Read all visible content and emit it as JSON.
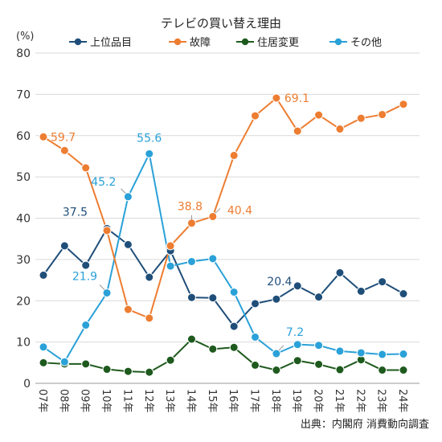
{
  "chart_data": {
    "type": "line",
    "title": "テレビの買い替え理由",
    "ylabel": "(%)",
    "source": "出典：内閣府 消費動向調査",
    "ylim": [
      0,
      80
    ],
    "yticks": [
      0,
      10,
      20,
      30,
      40,
      50,
      60,
      70,
      80
    ],
    "grid": true,
    "legend_position": "top",
    "categories": [
      "07年",
      "08年",
      "09年",
      "10年",
      "11年",
      "12年",
      "13年",
      "14年",
      "15年",
      "16年",
      "17年",
      "18年",
      "19年",
      "20年",
      "21年",
      "22年",
      "23年",
      "24年"
    ],
    "series": [
      {
        "name": "上位品目",
        "color": "#1f4e79",
        "values": [
          26.2,
          33.3,
          28.6,
          37.5,
          33.6,
          25.7,
          32.1,
          20.8,
          20.7,
          13.8,
          19.3,
          20.4,
          23.6,
          20.9,
          26.8,
          22.3,
          24.6,
          21.7
        ],
        "labels": [
          {
            "index": 3,
            "text": "37.5"
          },
          {
            "index": 11,
            "text": "20.4"
          }
        ]
      },
      {
        "name": "故障",
        "color": "#ed7d31",
        "values": [
          59.7,
          56.4,
          52.2,
          37.0,
          17.9,
          15.8,
          33.3,
          38.8,
          40.4,
          55.2,
          64.8,
          69.1,
          61.1,
          65.0,
          61.6,
          64.2,
          65.1,
          67.6
        ],
        "labels": [
          {
            "index": 0,
            "text": "59.7"
          },
          {
            "index": 7,
            "text": "38.8"
          },
          {
            "index": 8,
            "text": "40.4"
          },
          {
            "index": 11,
            "text": "69.1"
          }
        ]
      },
      {
        "name": "住居変更",
        "color": "#1e5a1e",
        "values": [
          5.0,
          4.7,
          4.7,
          3.4,
          2.9,
          2.7,
          5.6,
          10.7,
          8.3,
          8.7,
          4.4,
          3.2,
          5.5,
          4.6,
          3.3,
          5.7,
          3.2,
          3.2
        ],
        "labels": []
      },
      {
        "name": "その他",
        "color": "#2aa1d8",
        "values": [
          8.8,
          5.2,
          14.1,
          21.9,
          45.2,
          55.6,
          28.4,
          29.5,
          30.2,
          22.1,
          11.2,
          7.2,
          9.4,
          9.2,
          7.8,
          7.4,
          7.0,
          7.1
        ],
        "labels": [
          {
            "index": 3,
            "text": "21.9"
          },
          {
            "index": 4,
            "text": "45.2"
          },
          {
            "index": 5,
            "text": "55.6"
          },
          {
            "index": 11,
            "text": "7.2"
          }
        ]
      }
    ]
  }
}
